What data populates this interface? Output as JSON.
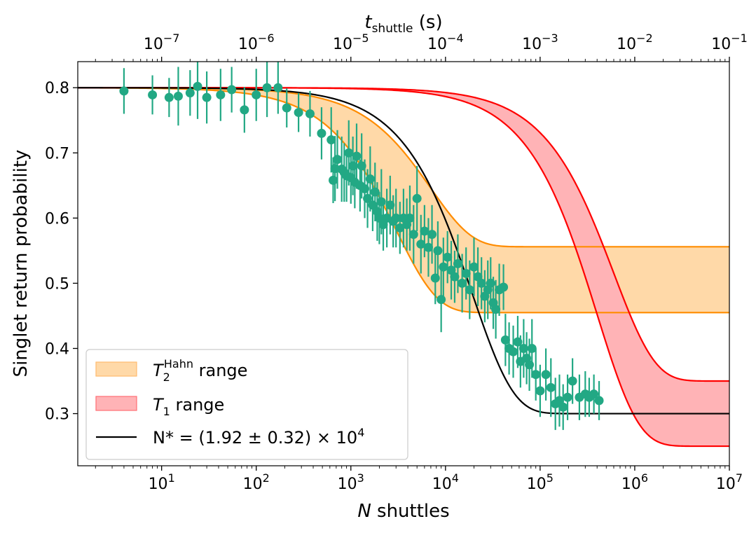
{
  "chart_data": {
    "type": "scatter",
    "xscale": "log",
    "x_label_prefix": "N",
    "xlabel": " shuttles",
    "ylabel": "Singlet return probability",
    "top_label_prefix": "t",
    "top_label_sub": "shuttle",
    "top_label_suffix": " (s)",
    "xlim": [
      1.3,
      10000000
    ],
    "ylim": [
      0.22,
      0.84
    ],
    "x_ticks": [
      {
        "value": 10,
        "base": "10",
        "exp": "1"
      },
      {
        "value": 100,
        "base": "10",
        "exp": "2"
      },
      {
        "value": 1000,
        "base": "10",
        "exp": "3"
      },
      {
        "value": 10000,
        "base": "10",
        "exp": "4"
      },
      {
        "value": 100000,
        "base": "10",
        "exp": "5"
      },
      {
        "value": 1000000,
        "base": "10",
        "exp": "6"
      },
      {
        "value": 10000000,
        "base": "10",
        "exp": "7"
      }
    ],
    "y_ticks": [
      {
        "value": 0.3,
        "label": "0.3"
      },
      {
        "value": 0.4,
        "label": "0.4"
      },
      {
        "value": 0.5,
        "label": "0.5"
      },
      {
        "value": 0.6,
        "label": "0.6"
      },
      {
        "value": 0.7,
        "label": "0.7"
      },
      {
        "value": 0.8,
        "label": "0.8"
      }
    ],
    "top_axis": {
      "note": "t_shuttle = N x 1e-8 s",
      "ticks": [
        {
          "value": 1e-07,
          "base": "10",
          "exp": "−7"
        },
        {
          "value": 1e-06,
          "base": "10",
          "exp": "−6"
        },
        {
          "value": 1e-05,
          "base": "10",
          "exp": "−5"
        },
        {
          "value": 0.0001,
          "base": "10",
          "exp": "−4"
        },
        {
          "value": 0.001,
          "base": "10",
          "exp": "−3"
        },
        {
          "value": 0.01,
          "base": "10",
          "exp": "−2"
        },
        {
          "value": 0.1,
          "base": "10",
          "exp": "−1"
        }
      ]
    },
    "data_points": [
      [
        4,
        0.795,
        0.035
      ],
      [
        8,
        0.789,
        0.03
      ],
      [
        12,
        0.785,
        0.03
      ],
      [
        15,
        0.787,
        0.045
      ],
      [
        20,
        0.792,
        0.035
      ],
      [
        24,
        0.802,
        0.05
      ],
      [
        30,
        0.785,
        0.04
      ],
      [
        42,
        0.789,
        0.04
      ],
      [
        55,
        0.797,
        0.035
      ],
      [
        75,
        0.766,
        0.035
      ],
      [
        100,
        0.789,
        0.04
      ],
      [
        130,
        0.8,
        0.045
      ],
      [
        170,
        0.8,
        0.04
      ],
      [
        210,
        0.769,
        0.03
      ],
      [
        280,
        0.762,
        0.03
      ],
      [
        370,
        0.76,
        0.035
      ],
      [
        490,
        0.73,
        0.04
      ],
      [
        620,
        0.72,
        0.05
      ],
      [
        650,
        0.658,
        0.035
      ],
      [
        680,
        0.676,
        0.05
      ],
      [
        720,
        0.69,
        0.045
      ],
      [
        800,
        0.675,
        0.05
      ],
      [
        850,
        0.67,
        0.045
      ],
      [
        900,
        0.665,
        0.04
      ],
      [
        950,
        0.7,
        0.05
      ],
      [
        1000,
        0.662,
        0.04
      ],
      [
        1050,
        0.68,
        0.045
      ],
      [
        1100,
        0.655,
        0.04
      ],
      [
        1150,
        0.695,
        0.05
      ],
      [
        1250,
        0.65,
        0.04
      ],
      [
        1300,
        0.68,
        0.05
      ],
      [
        1400,
        0.645,
        0.045
      ],
      [
        1500,
        0.63,
        0.045
      ],
      [
        1600,
        0.66,
        0.05
      ],
      [
        1700,
        0.62,
        0.04
      ],
      [
        1800,
        0.64,
        0.045
      ],
      [
        1900,
        0.61,
        0.045
      ],
      [
        2000,
        0.6,
        0.04
      ],
      [
        2100,
        0.625,
        0.05
      ],
      [
        2200,
        0.59,
        0.04
      ],
      [
        2400,
        0.6,
        0.045
      ],
      [
        2600,
        0.62,
        0.045
      ],
      [
        2800,
        0.595,
        0.04
      ],
      [
        3000,
        0.6,
        0.045
      ],
      [
        3300,
        0.585,
        0.04
      ],
      [
        3600,
        0.6,
        0.045
      ],
      [
        3900,
        0.59,
        0.04
      ],
      [
        4200,
        0.6,
        0.05
      ],
      [
        4600,
        0.575,
        0.045
      ],
      [
        5000,
        0.63,
        0.05
      ],
      [
        5500,
        0.56,
        0.045
      ],
      [
        6000,
        0.58,
        0.04
      ],
      [
        6600,
        0.555,
        0.045
      ],
      [
        7200,
        0.575,
        0.045
      ],
      [
        7800,
        0.508,
        0.04
      ],
      [
        8300,
        0.55,
        0.045
      ],
      [
        9000,
        0.475,
        0.05
      ],
      [
        9500,
        0.525,
        0.045
      ],
      [
        10500,
        0.54,
        0.04
      ],
      [
        11500,
        0.52,
        0.045
      ],
      [
        12500,
        0.51,
        0.04
      ],
      [
        13500,
        0.53,
        0.045
      ],
      [
        15000,
        0.5,
        0.045
      ],
      [
        16500,
        0.515,
        0.04
      ],
      [
        18000,
        0.49,
        0.045
      ],
      [
        20000,
        0.525,
        0.045
      ],
      [
        22000,
        0.51,
        0.045
      ],
      [
        24000,
        0.5,
        0.04
      ],
      [
        26000,
        0.48,
        0.04
      ],
      [
        28000,
        0.49,
        0.045
      ],
      [
        30000,
        0.5,
        0.04
      ],
      [
        32000,
        0.47,
        0.04
      ],
      [
        34000,
        0.46,
        0.045
      ],
      [
        37000,
        0.49,
        0.04
      ],
      [
        41000,
        0.494,
        0.035
      ],
      [
        43000,
        0.413,
        0.04
      ],
      [
        47000,
        0.4,
        0.04
      ],
      [
        52000,
        0.395,
        0.04
      ],
      [
        58000,
        0.41,
        0.04
      ],
      [
        62000,
        0.38,
        0.04
      ],
      [
        67000,
        0.4,
        0.045
      ],
      [
        72000,
        0.385,
        0.04
      ],
      [
        77000,
        0.375,
        0.04
      ],
      [
        82000,
        0.4,
        0.045
      ],
      [
        90000,
        0.36,
        0.04
      ],
      [
        100000,
        0.335,
        0.04
      ],
      [
        115000,
        0.36,
        0.04
      ],
      [
        130000,
        0.34,
        0.045
      ],
      [
        145000,
        0.315,
        0.04
      ],
      [
        160000,
        0.32,
        0.04
      ],
      [
        175000,
        0.31,
        0.035
      ],
      [
        195000,
        0.325,
        0.035
      ],
      [
        220000,
        0.35,
        0.035
      ],
      [
        260000,
        0.325,
        0.035
      ],
      [
        300000,
        0.33,
        0.035
      ],
      [
        330000,
        0.325,
        0.03
      ],
      [
        370000,
        0.33,
        0.03
      ],
      [
        420000,
        0.32,
        0.03
      ]
    ],
    "legend": [
      {
        "kind": "fill",
        "color": "#ffd9a8",
        "edge": "#ffbb6e",
        "prefix": "T",
        "sub": "2",
        "sup": "Hahn",
        "suffix": " range"
      },
      {
        "kind": "fill",
        "color": "#ffb3b6",
        "edge": "#ff6e75",
        "prefix": "T",
        "sub": "1",
        "sup": "",
        "suffix": " range"
      },
      {
        "kind": "line",
        "color": "#000000",
        "text": "N* = (1.92 ± 0.32) × 10",
        "sup": "4"
      }
    ],
    "legend_placement": "lower-left",
    "model": {
      "fit": {
        "Nstar": 19200,
        "A": 0.5,
        "P0": 0.3,
        "color": "#000000"
      },
      "t2_band": {
        "upper_Nc": 7000,
        "upper_floor": 0.556,
        "lower_Nc": 3000,
        "lower_floor": 0.455,
        "line": "#ff8c00",
        "fill": "#ffd9a8"
      },
      "t1_band": {
        "upper_Nc": 600000,
        "upper_floor": 0.35,
        "lower_Nc": 400000,
        "lower_floor": 0.25,
        "line": "#ff0000",
        "fill": "#ffb3b6"
      }
    },
    "marker_color": "#22a884",
    "grid": false
  }
}
